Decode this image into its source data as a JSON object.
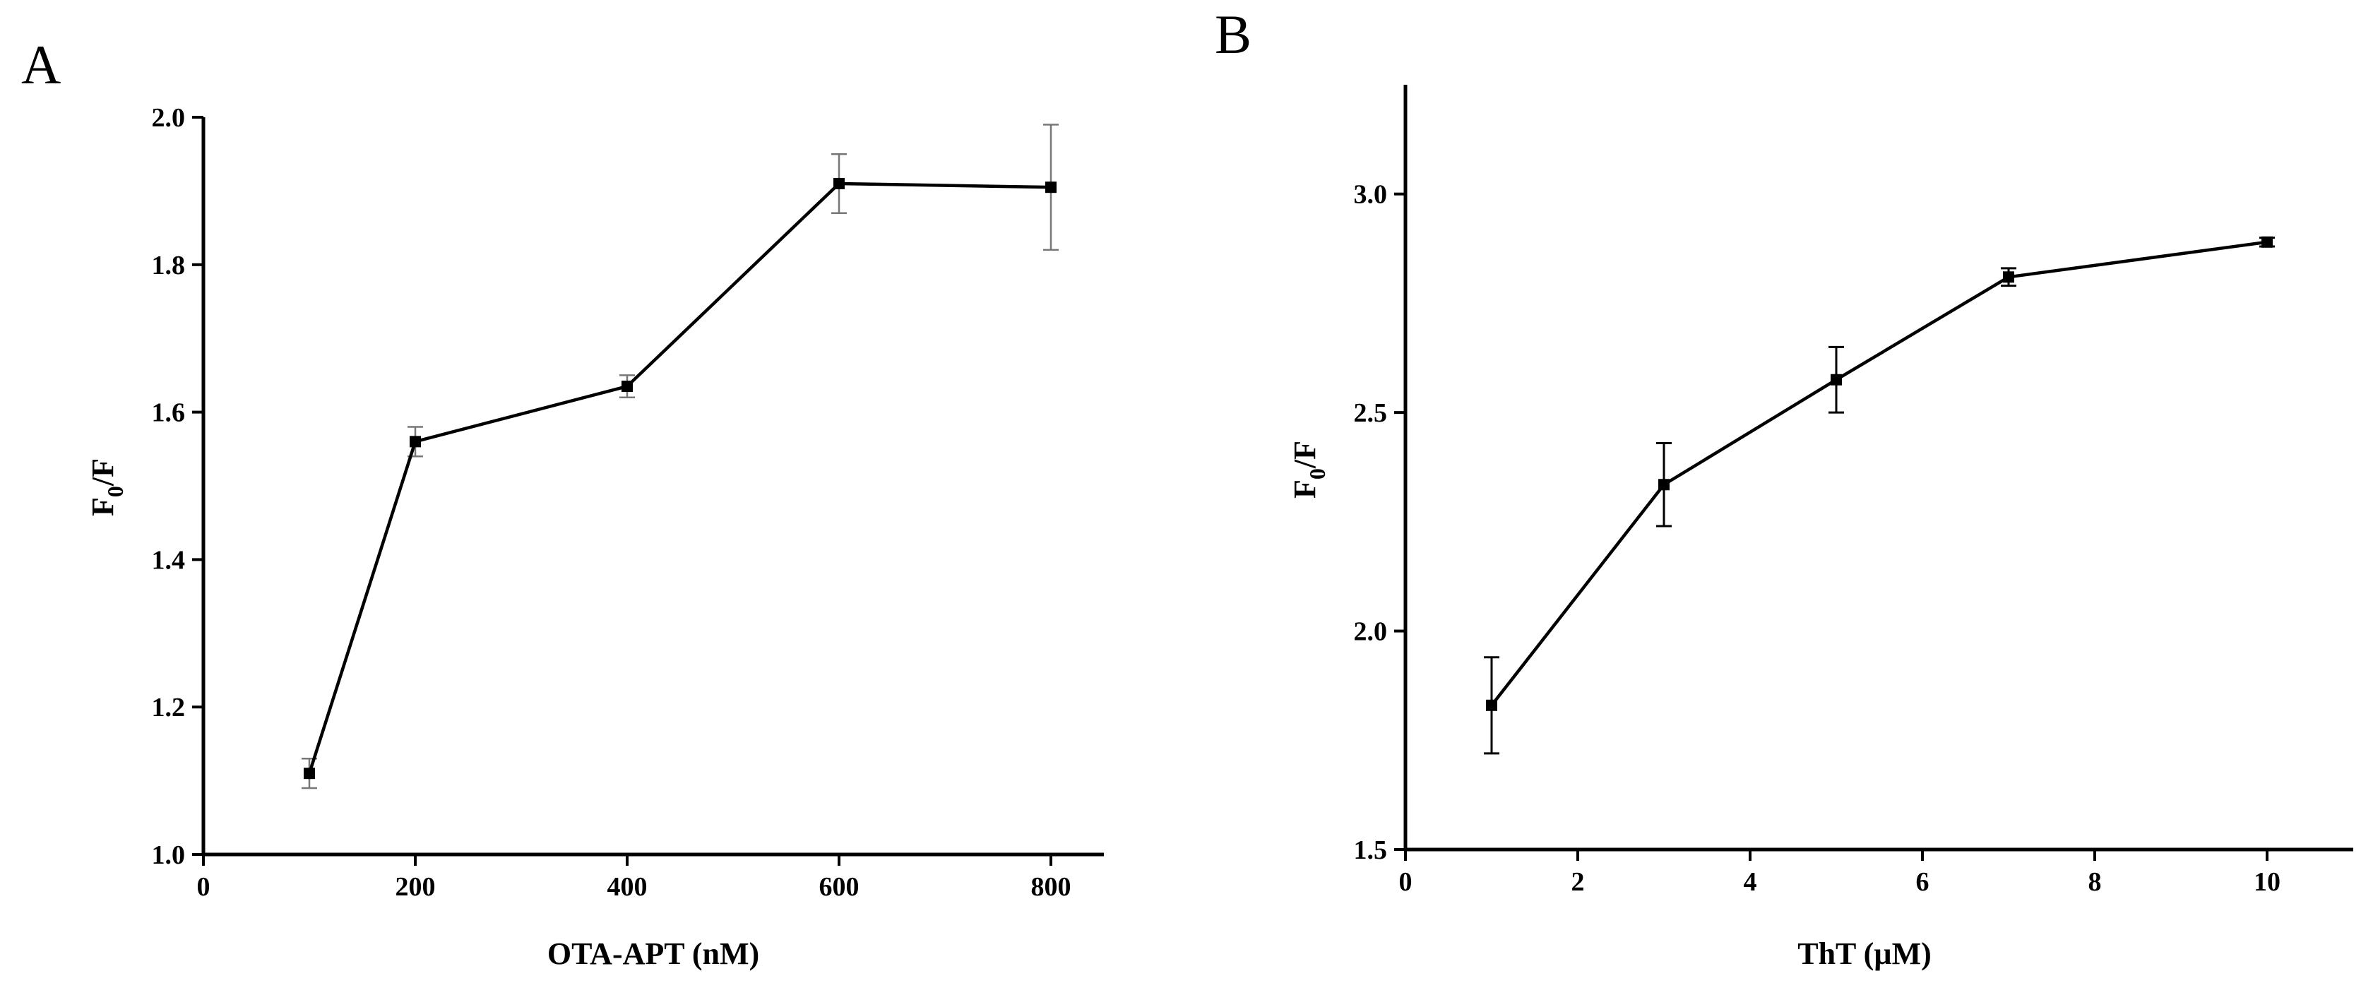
{
  "chart_data": [
    {
      "type": "line",
      "panel": "A",
      "xlabel": "OTA-APT (nM)",
      "ylabel_main": "F",
      "ylabel_sub": "0",
      "ylabel_tail": "/F",
      "xlim": [
        0,
        850
      ],
      "ylim": [
        1.0,
        2.0
      ],
      "xticks": [
        0,
        200,
        400,
        600,
        800
      ],
      "yticks": [
        1.0,
        1.2,
        1.4,
        1.6,
        1.8,
        2.0
      ],
      "xtick_labels": [
        "0",
        "200",
        "400",
        "600",
        "800"
      ],
      "ytick_labels": [
        "1.0",
        "1.2",
        "1.4",
        "1.6",
        "1.8",
        "2.0"
      ],
      "error_color": "#777777",
      "series": [
        {
          "name": "F0/F",
          "x": [
            100,
            200,
            400,
            600,
            800
          ],
          "y": [
            1.11,
            1.56,
            1.635,
            1.91,
            1.905
          ],
          "err": [
            0.02,
            0.02,
            0.015,
            0.04,
            0.085
          ]
        }
      ]
    },
    {
      "type": "line",
      "panel": "B",
      "xlabel": "ThT (µM)",
      "ylabel_main": "F",
      "ylabel_sub": "0",
      "ylabel_tail": "/F",
      "xlim": [
        0,
        11
      ],
      "ylim": [
        1.5,
        3.25
      ],
      "xticks": [
        0,
        2,
        4,
        6,
        8,
        10
      ],
      "yticks": [
        1.5,
        2.0,
        2.5,
        3.0
      ],
      "xtick_labels": [
        "0",
        "2",
        "4",
        "6",
        "8",
        "10"
      ],
      "ytick_labels": [
        "1.5",
        "2.0",
        "2.5",
        "3.0"
      ],
      "error_color": "#000000",
      "series": [
        {
          "name": "F0/F",
          "x": [
            1,
            3,
            5,
            7,
            10
          ],
          "y": [
            1.83,
            2.335,
            2.575,
            2.81,
            2.89
          ],
          "err": [
            0.11,
            0.095,
            0.075,
            0.02,
            0.01
          ]
        }
      ]
    }
  ]
}
